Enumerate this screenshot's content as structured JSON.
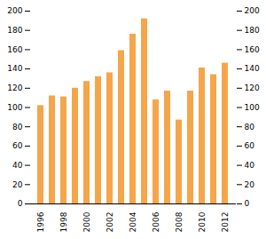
{
  "chart_data": {
    "type": "bar",
    "categories": [
      "1996",
      null,
      "1998",
      null,
      "2000",
      null,
      "2002",
      null,
      "2004",
      null,
      "2006",
      null,
      "2008",
      null,
      "2010",
      null,
      "2012"
    ],
    "values": [
      102,
      112,
      111,
      120,
      127,
      132,
      136,
      159,
      176,
      192,
      108,
      117,
      87,
      117,
      141,
      134,
      146
    ],
    "color": "#f5a54a",
    "ylim": [
      0,
      200
    ],
    "yticks": [
      0,
      20,
      40,
      60,
      80,
      100,
      120,
      140,
      160,
      180,
      200
    ],
    "y2lim": [
      0,
      200
    ],
    "y2ticks": [
      0,
      20,
      40,
      60,
      80,
      100,
      120,
      140,
      160,
      180,
      200
    ],
    "grid": false
  }
}
